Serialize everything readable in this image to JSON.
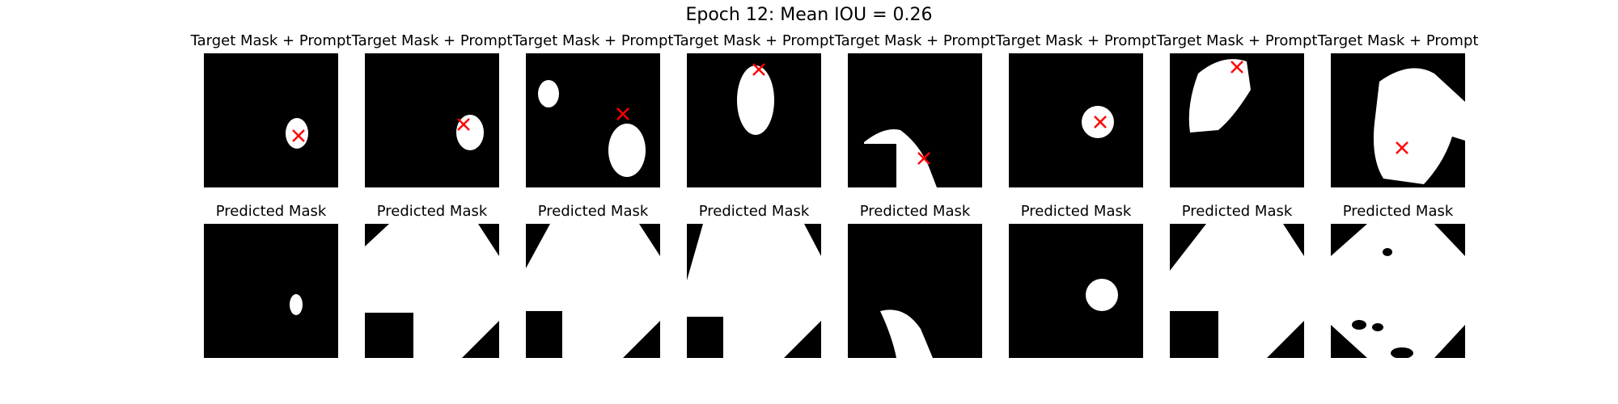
{
  "chart_data": {
    "type": "image-grid",
    "title": "Epoch 12: Mean IOU = 0.26",
    "colors": {
      "background": "#000000",
      "mask": "#ffffff",
      "prompt_marker": "#ff0000"
    },
    "rows": [
      {
        "panel_title": "Target Mask + Prompt",
        "panels": [
          {
            "panel_title": "Target Mask + Prompt",
            "prompt_marker": "red-x"
          },
          {
            "panel_title": "Target Mask + Prompt",
            "prompt_marker": "red-x"
          },
          {
            "panel_title": "Target Mask + Prompt",
            "prompt_marker": "red-x"
          },
          {
            "panel_title": "Target Mask + Prompt",
            "prompt_marker": "red-x"
          },
          {
            "panel_title": "Target Mask + Prompt",
            "prompt_marker": "red-x"
          },
          {
            "panel_title": "Target Mask + Prompt",
            "prompt_marker": "red-x"
          },
          {
            "panel_title": "Target Mask + Prompt",
            "prompt_marker": "red-x"
          },
          {
            "panel_title": "Target Mask + Prompt",
            "prompt_marker": "red-x"
          }
        ]
      },
      {
        "panel_title": "Predicted Mask",
        "panels": [
          {
            "panel_title": "Predicted Mask"
          },
          {
            "panel_title": "Predicted Mask"
          },
          {
            "panel_title": "Predicted Mask"
          },
          {
            "panel_title": "Predicted Mask"
          },
          {
            "panel_title": "Predicted Mask"
          },
          {
            "panel_title": "Predicted Mask"
          },
          {
            "panel_title": "Predicted Mask"
          },
          {
            "panel_title": "Predicted Mask"
          }
        ]
      }
    ]
  }
}
